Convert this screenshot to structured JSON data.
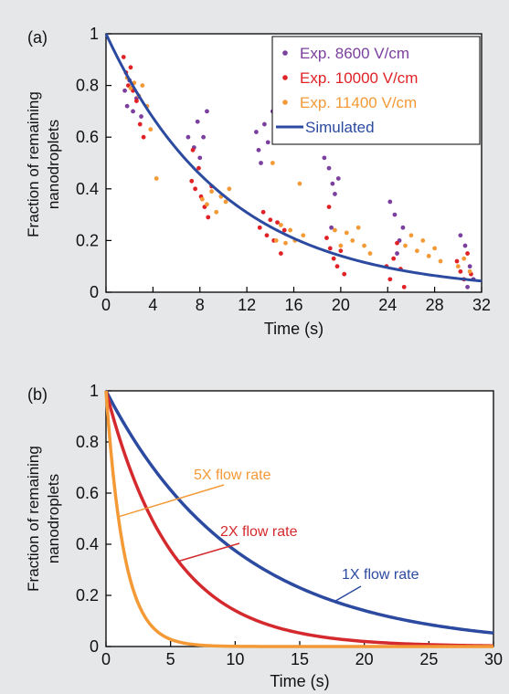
{
  "chart_data": [
    {
      "panel": "(a)",
      "type": "scatter",
      "xlabel": "Time (s)",
      "ylabel": [
        "Fraction of remaining",
        "nanodroplets"
      ],
      "xlim": [
        0,
        32
      ],
      "ylim": [
        0,
        1
      ],
      "xticks": [
        0,
        4,
        8,
        12,
        16,
        20,
        24,
        28,
        32
      ],
      "yticks": [
        0,
        0.2,
        0.4,
        0.6,
        0.8,
        1
      ],
      "grid": false,
      "legend_position": "top-right",
      "series": [
        {
          "name": "Exp. 8600 V/cm",
          "type": "scatter",
          "color": "#7b3f9e",
          "points": [
            [
              1.6,
              0.78
            ],
            [
              1.8,
              0.72
            ],
            [
              2.0,
              0.82
            ],
            [
              2.3,
              0.7
            ],
            [
              2.6,
              0.75
            ],
            [
              3.0,
              0.68
            ],
            [
              7.0,
              0.6
            ],
            [
              7.5,
              0.56
            ],
            [
              7.8,
              0.66
            ],
            [
              8.0,
              0.52
            ],
            [
              8.3,
              0.6
            ],
            [
              8.6,
              0.7
            ],
            [
              12.8,
              0.62
            ],
            [
              13.2,
              0.5
            ],
            [
              13.5,
              0.65
            ],
            [
              13.8,
              0.58
            ],
            [
              14.2,
              0.7
            ],
            [
              13.0,
              0.55
            ],
            [
              18.6,
              0.52
            ],
            [
              19.0,
              0.48
            ],
            [
              19.3,
              0.42
            ],
            [
              19.5,
              0.38
            ],
            [
              19.8,
              0.44
            ],
            [
              19.2,
              0.25
            ],
            [
              24.2,
              0.35
            ],
            [
              24.6,
              0.3
            ],
            [
              25.0,
              0.2
            ],
            [
              25.3,
              0.25
            ],
            [
              24.8,
              0.15
            ],
            [
              30.2,
              0.22
            ],
            [
              30.6,
              0.18
            ],
            [
              31.0,
              0.1
            ],
            [
              31.3,
              0.05
            ],
            [
              30.8,
              0.02
            ]
          ]
        },
        {
          "name": "Exp. 10000 V/cm",
          "type": "scatter",
          "color": "#e02226",
          "points": [
            [
              1.5,
              0.91
            ],
            [
              1.7,
              0.85
            ],
            [
              1.9,
              0.8
            ],
            [
              2.1,
              0.87
            ],
            [
              2.3,
              0.78
            ],
            [
              2.6,
              0.74
            ],
            [
              2.9,
              0.65
            ],
            [
              3.2,
              0.6
            ],
            [
              7.3,
              0.43
            ],
            [
              7.6,
              0.4
            ],
            [
              7.9,
              0.48
            ],
            [
              8.1,
              0.37
            ],
            [
              8.4,
              0.33
            ],
            [
              8.7,
              0.29
            ],
            [
              9.0,
              0.41
            ],
            [
              7.4,
              0.55
            ],
            [
              13.1,
              0.25
            ],
            [
              13.4,
              0.31
            ],
            [
              13.7,
              0.22
            ],
            [
              14.0,
              0.28
            ],
            [
              14.3,
              0.2
            ],
            [
              14.6,
              0.27
            ],
            [
              14.9,
              0.15
            ],
            [
              15.2,
              0.24
            ],
            [
              18.8,
              0.21
            ],
            [
              19.1,
              0.17
            ],
            [
              19.4,
              0.13
            ],
            [
              19.7,
              0.1
            ],
            [
              20.0,
              0.16
            ],
            [
              20.3,
              0.07
            ],
            [
              19.0,
              0.33
            ],
            [
              23.9,
              0.1
            ],
            [
              24.2,
              0.05
            ],
            [
              24.5,
              0.13
            ],
            [
              24.8,
              0.19
            ],
            [
              25.1,
              0.09
            ],
            [
              25.4,
              0.02
            ],
            [
              29.9,
              0.12
            ],
            [
              30.2,
              0.08
            ],
            [
              30.5,
              0.05
            ],
            [
              30.8,
              0.15
            ],
            [
              31.1,
              0.07
            ]
          ]
        },
        {
          "name": "Exp. 11400 V/cm",
          "type": "scatter",
          "color": "#f39a37",
          "points": [
            [
              1.8,
              0.83
            ],
            [
              2.1,
              0.79
            ],
            [
              2.4,
              0.81
            ],
            [
              2.8,
              0.76
            ],
            [
              3.1,
              0.8
            ],
            [
              3.5,
              0.72
            ],
            [
              3.8,
              0.63
            ],
            [
              4.3,
              0.44
            ],
            [
              8.2,
              0.36
            ],
            [
              8.6,
              0.34
            ],
            [
              9.0,
              0.39
            ],
            [
              9.4,
              0.31
            ],
            [
              9.8,
              0.37
            ],
            [
              10.2,
              0.35
            ],
            [
              10.5,
              0.4
            ],
            [
              14.2,
              0.5
            ],
            [
              14.5,
              0.2
            ],
            [
              14.9,
              0.26
            ],
            [
              15.3,
              0.19
            ],
            [
              15.7,
              0.24
            ],
            [
              16.1,
              0.2
            ],
            [
              16.5,
              0.42
            ],
            [
              16.8,
              0.22
            ],
            [
              19.5,
              0.24
            ],
            [
              20.0,
              0.18
            ],
            [
              20.5,
              0.23
            ],
            [
              21.0,
              0.2
            ],
            [
              21.5,
              0.25
            ],
            [
              22.0,
              0.18
            ],
            [
              22.5,
              0.15
            ],
            [
              25.5,
              0.18
            ],
            [
              26.0,
              0.22
            ],
            [
              26.5,
              0.16
            ],
            [
              27.0,
              0.2
            ],
            [
              27.5,
              0.14
            ],
            [
              28.0,
              0.17
            ],
            [
              28.5,
              0.12
            ],
            [
              30.0,
              0.1
            ],
            [
              30.5,
              0.13
            ],
            [
              31.0,
              0.08
            ]
          ]
        },
        {
          "name": "Simulated",
          "type": "line",
          "color": "#2b4aa0",
          "curve": "exp",
          "tau": 10.2
        }
      ]
    },
    {
      "panel": "(b)",
      "type": "line",
      "xlabel": "Time (s)",
      "ylabel": [
        "Fraction of remaining",
        "nanodroplets"
      ],
      "xlim": [
        0,
        30
      ],
      "ylim": [
        0,
        1
      ],
      "xticks": [
        0,
        5,
        10,
        15,
        20,
        25,
        30
      ],
      "yticks": [
        0,
        0.2,
        0.4,
        0.6,
        0.8,
        1
      ],
      "grid": false,
      "series": [
        {
          "name": "1X flow rate",
          "color": "#2b4aa0",
          "curve": "exp",
          "tau": 10.2
        },
        {
          "name": "2X flow rate",
          "color": "#d42a2e",
          "curve": "exp",
          "tau": 5.1
        },
        {
          "name": "5X flow rate",
          "color": "#f39a37",
          "curve": "exp",
          "tau": 1.4
        }
      ]
    }
  ]
}
